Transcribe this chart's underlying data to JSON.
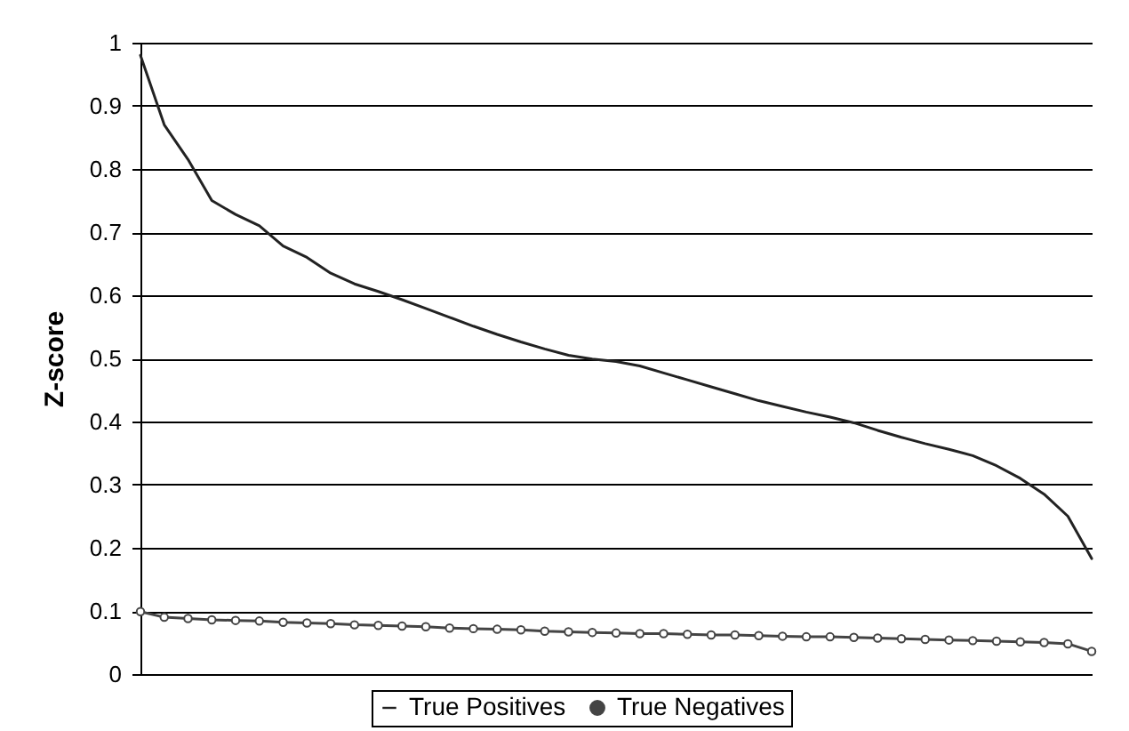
{
  "chart_data": {
    "type": "line",
    "ylabel": "Z-score",
    "categories": [
      null,
      null,
      null,
      null,
      null,
      null,
      null,
      null,
      null,
      null,
      null,
      null,
      null,
      null,
      null,
      null,
      null,
      null,
      null,
      null,
      null,
      null,
      null,
      null,
      null,
      null,
      null,
      null,
      null,
      null,
      null,
      null,
      null,
      null,
      null,
      null,
      null,
      null,
      null,
      null,
      null
    ],
    "ylim": [
      0,
      1
    ],
    "yticks": [
      0,
      0.1,
      0.2,
      0.3,
      0.4,
      0.5,
      0.6,
      0.7,
      0.8,
      0.9,
      1
    ],
    "grid": "y",
    "legend": "bottom",
    "tick_labels": "y",
    "series": [
      {
        "name": "True Positives",
        "color": "#222222",
        "marker": "none",
        "values": [
          0.98,
          0.87,
          0.815,
          0.75,
          0.728,
          0.71,
          0.678,
          0.66,
          0.635,
          0.618,
          0.606,
          0.593,
          0.579,
          0.565,
          0.551,
          0.538,
          0.526,
          0.515,
          0.505,
          0.499,
          0.495,
          0.488,
          0.477,
          0.466,
          0.455,
          0.444,
          0.433,
          0.424,
          0.415,
          0.407,
          0.398,
          0.386,
          0.375,
          0.365,
          0.356,
          0.346,
          0.33,
          0.31,
          0.285,
          0.25,
          0.183
        ]
      },
      {
        "name": "True Negatives",
        "color": "#444444",
        "marker": "circle",
        "values": [
          0.099,
          0.09,
          0.088,
          0.086,
          0.085,
          0.084,
          0.082,
          0.081,
          0.08,
          0.078,
          0.077,
          0.076,
          0.075,
          0.073,
          0.072,
          0.071,
          0.07,
          0.068,
          0.067,
          0.066,
          0.065,
          0.064,
          0.064,
          0.063,
          0.062,
          0.062,
          0.061,
          0.06,
          0.059,
          0.059,
          0.058,
          0.057,
          0.056,
          0.055,
          0.054,
          0.053,
          0.052,
          0.051,
          0.05,
          0.048,
          0.036
        ]
      }
    ]
  }
}
